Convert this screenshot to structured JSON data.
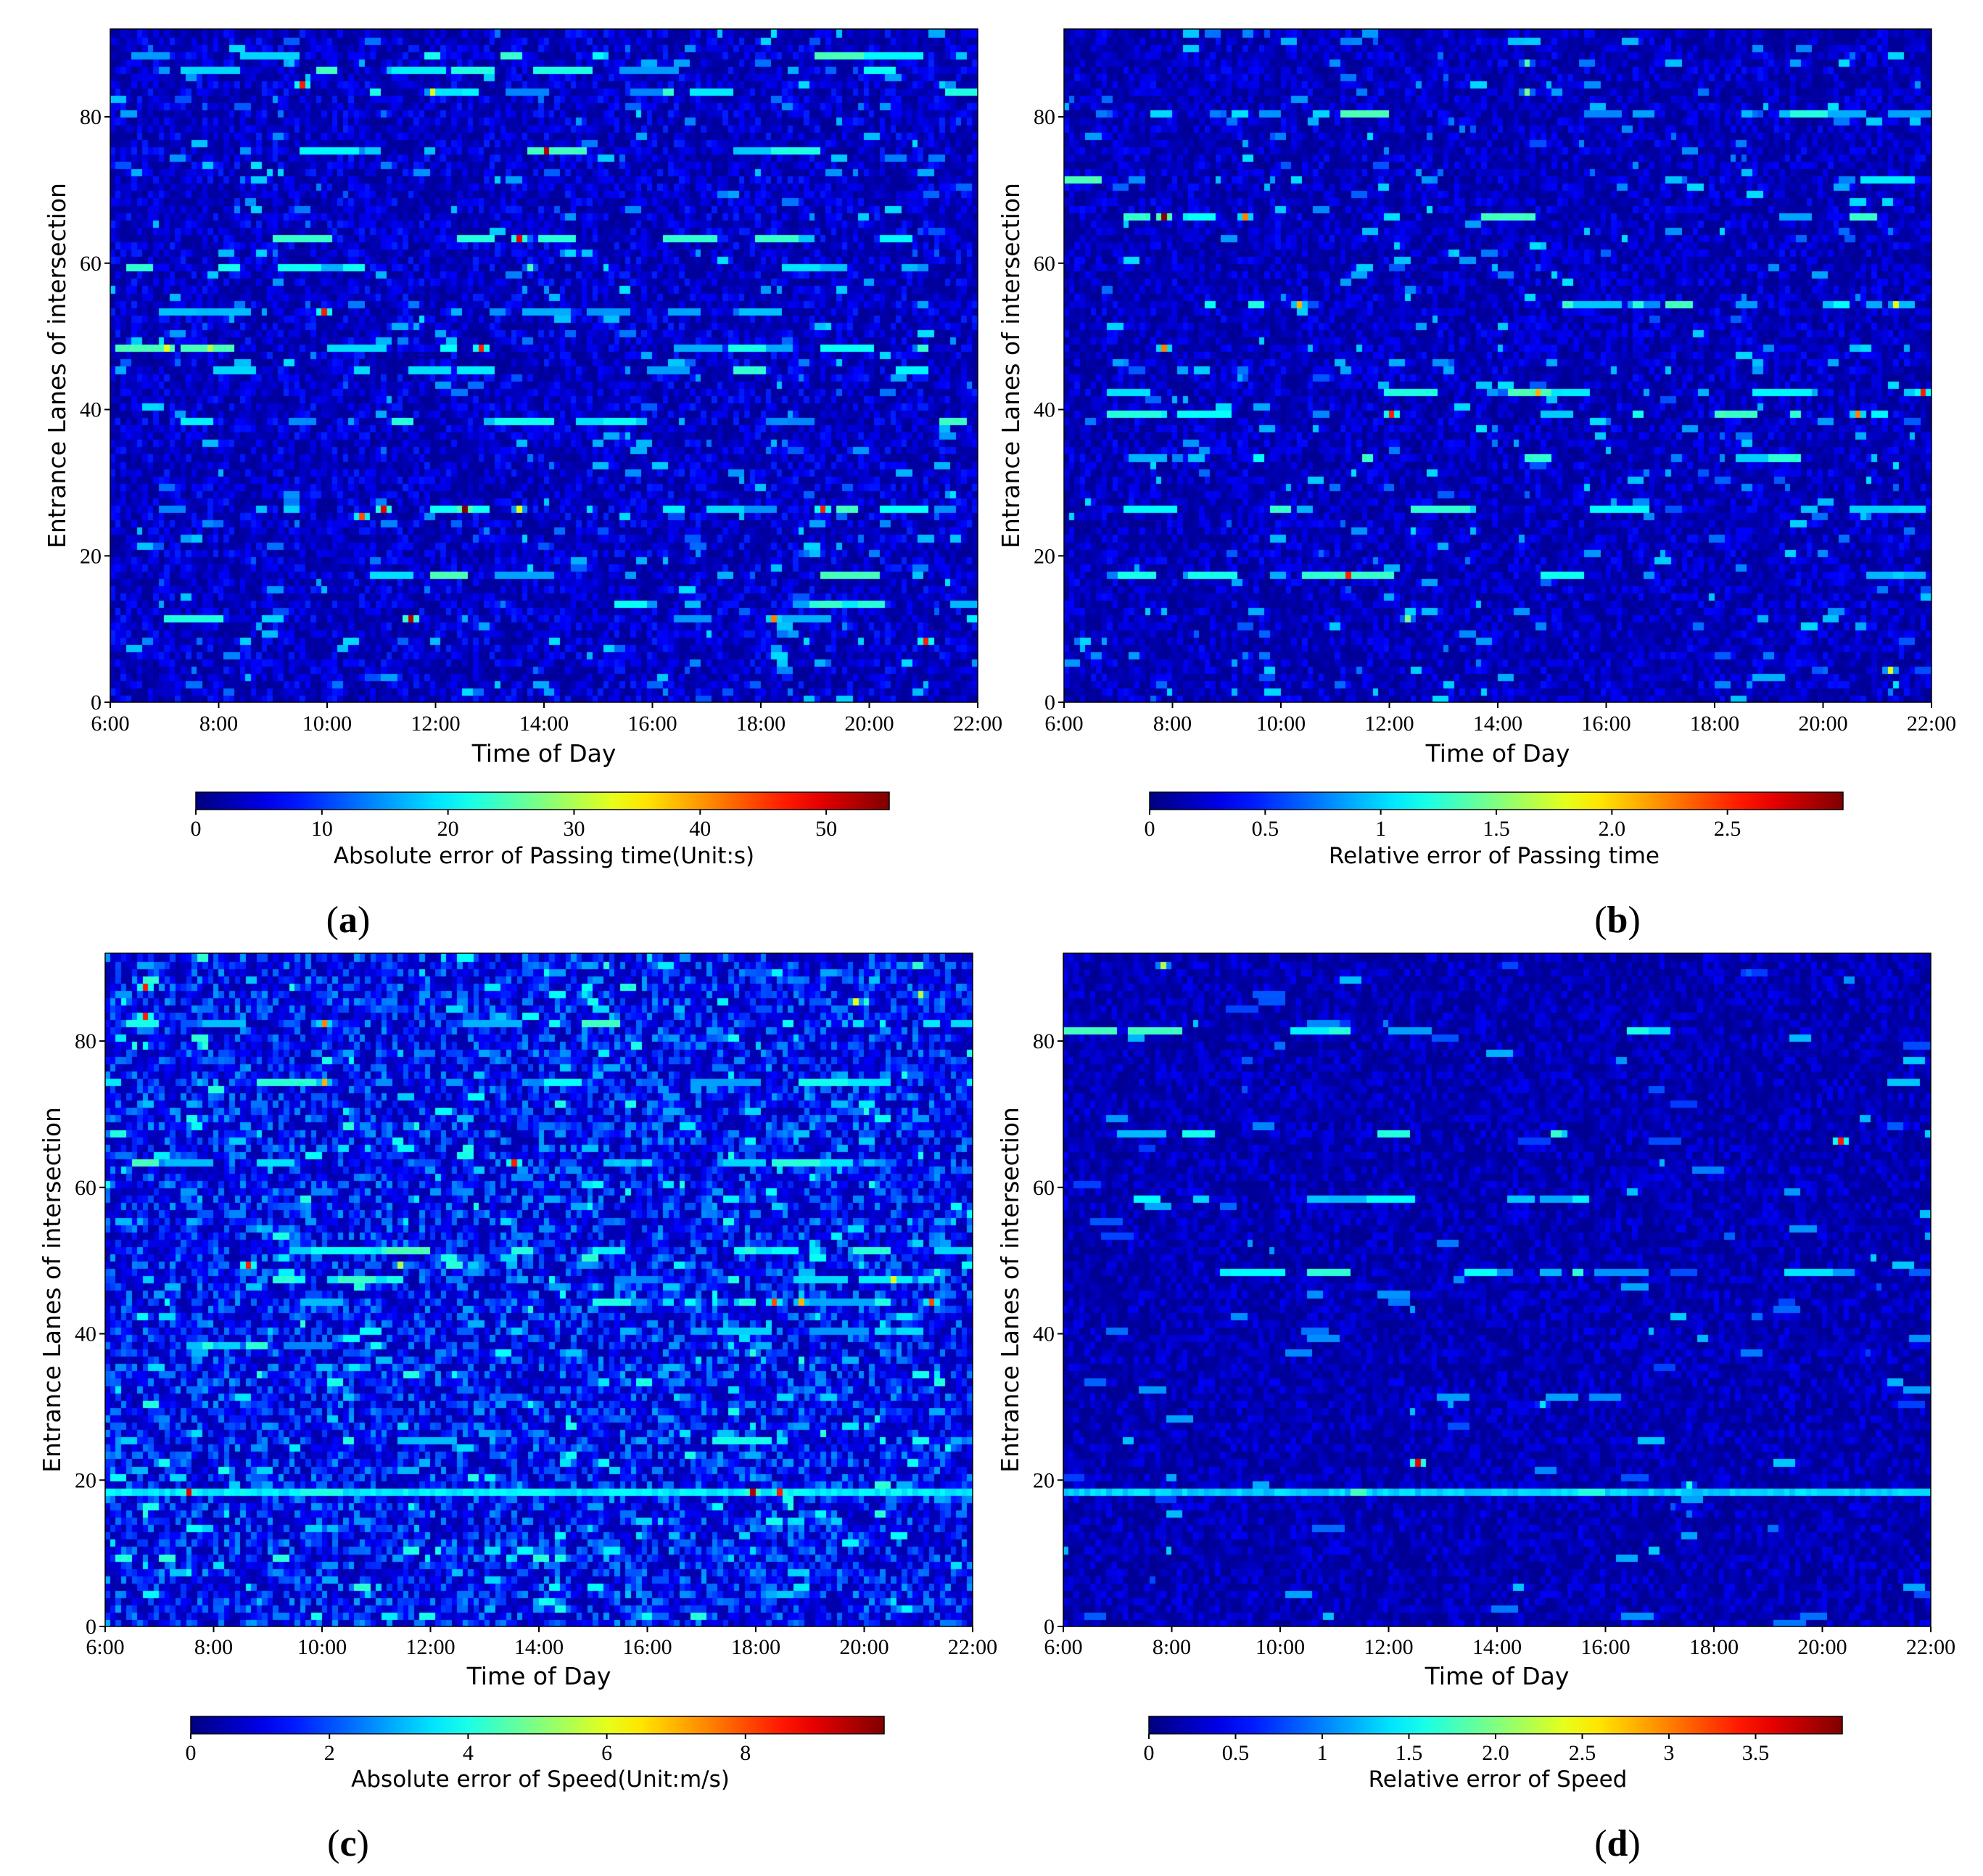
{
  "chart_data": [
    {
      "id": "a",
      "panel_label_open": "(",
      "panel_label_letter": "a",
      "panel_label_close": ")",
      "type": "heatmap",
      "xlabel": "Time of Day",
      "ylabel": "Entrance Lanes of intersection",
      "x_ticks": [
        "6:00",
        "8:00",
        "10:00",
        "12:00",
        "14:00",
        "16:00",
        "18:00",
        "20:00",
        "22:00"
      ],
      "y_ticks": [
        0,
        20,
        40,
        60,
        80
      ],
      "x_range_hours": [
        6,
        22
      ],
      "y_range": [
        0,
        92
      ],
      "grid_cols": 160,
      "grid_rows": 92,
      "colorbar": {
        "label": "Absolute error of Passing time(Unit:s)",
        "min": 0,
        "max": 55,
        "ticks": [
          "0",
          "10",
          "20",
          "30",
          "40",
          "50"
        ],
        "tick_values": [
          0,
          10,
          20,
          30,
          40,
          50
        ]
      },
      "background_level": 0.08,
      "hot_spots": [
        {
          "t": 9.5,
          "lane": 84,
          "v": 0.85
        },
        {
          "t": 14.0,
          "lane": 75,
          "v": 0.95
        },
        {
          "t": 13.5,
          "lane": 63,
          "v": 0.9
        },
        {
          "t": 9.9,
          "lane": 53,
          "v": 0.85
        },
        {
          "t": 7.0,
          "lane": 48,
          "v": 0.6
        },
        {
          "t": 7.8,
          "lane": 48,
          "v": 0.55
        },
        {
          "t": 12.8,
          "lane": 48,
          "v": 0.85
        },
        {
          "t": 10.6,
          "lane": 25,
          "v": 0.8
        },
        {
          "t": 11.0,
          "lane": 26,
          "v": 0.9
        },
        {
          "t": 12.5,
          "lane": 26,
          "v": 1.0
        },
        {
          "t": 13.5,
          "lane": 26,
          "v": 0.6
        },
        {
          "t": 19.2,
          "lane": 26,
          "v": 0.85
        },
        {
          "t": 11.5,
          "lane": 11,
          "v": 0.95
        },
        {
          "t": 18.3,
          "lane": 11,
          "v": 0.75
        },
        {
          "t": 21.1,
          "lane": 8,
          "v": 0.85
        },
        {
          "t": 13.7,
          "lane": 59,
          "v": 0.45
        },
        {
          "t": 11.9,
          "lane": 83,
          "v": 0.6
        }
      ],
      "streak_lanes": [
        26,
        63,
        59,
        86,
        88,
        83,
        75,
        13,
        11,
        17,
        53,
        48,
        38,
        45
      ]
    },
    {
      "id": "b",
      "panel_label_open": "(",
      "panel_label_letter": "b",
      "panel_label_close": ")",
      "type": "heatmap",
      "xlabel": "Time of Day",
      "ylabel": "Entrance Lanes of intersection",
      "x_ticks": [
        "6:00",
        "8:00",
        "10:00",
        "12:00",
        "14:00",
        "16:00",
        "18:00",
        "20:00",
        "22:00"
      ],
      "y_ticks": [
        0,
        20,
        40,
        60,
        80
      ],
      "x_range_hours": [
        6,
        22
      ],
      "y_range": [
        0,
        92
      ],
      "grid_cols": 160,
      "grid_rows": 92,
      "colorbar": {
        "label": "Relative error of Passing time",
        "min": 0,
        "max": 3.0,
        "ticks": [
          "0",
          "0.5",
          "1",
          "1.5",
          "2.0",
          "2.5"
        ],
        "tick_values": [
          0,
          0.5,
          1,
          1.5,
          2.0,
          2.5
        ]
      },
      "background_level": 0.07,
      "hot_spots": [
        {
          "t": 7.8,
          "lane": 66,
          "v": 1.0
        },
        {
          "t": 9.3,
          "lane": 66,
          "v": 0.75
        },
        {
          "t": 10.3,
          "lane": 54,
          "v": 0.7
        },
        {
          "t": 7.8,
          "lane": 48,
          "v": 0.75
        },
        {
          "t": 12.0,
          "lane": 39,
          "v": 0.85
        },
        {
          "t": 14.8,
          "lane": 42,
          "v": 0.7
        },
        {
          "t": 11.2,
          "lane": 17,
          "v": 0.85
        },
        {
          "t": 12.3,
          "lane": 11,
          "v": 0.5
        },
        {
          "t": 20.7,
          "lane": 39,
          "v": 0.75
        },
        {
          "t": 21.9,
          "lane": 42,
          "v": 0.85
        },
        {
          "t": 21.4,
          "lane": 54,
          "v": 0.6
        },
        {
          "t": 21.3,
          "lane": 4,
          "v": 0.6
        },
        {
          "t": 18.2,
          "lane": 39,
          "v": 0.45
        },
        {
          "t": 14.6,
          "lane": 87,
          "v": 0.45
        },
        {
          "t": 14.6,
          "lane": 83,
          "v": 0.5
        }
      ],
      "streak_lanes": [
        54,
        42,
        39,
        66,
        80,
        26,
        17,
        33,
        71
      ]
    },
    {
      "id": "c",
      "panel_label_open": "(",
      "panel_label_letter": "c",
      "panel_label_close": ")",
      "type": "heatmap",
      "xlabel": "Time of Day",
      "ylabel": "Entrance Lanes of intersection",
      "x_ticks": [
        "6:00",
        "8:00",
        "10:00",
        "12:00",
        "14:00",
        "16:00",
        "18:00",
        "20:00",
        "22:00"
      ],
      "y_ticks": [
        0,
        20,
        40,
        60,
        80
      ],
      "x_range_hours": [
        6,
        22
      ],
      "y_range": [
        0,
        92
      ],
      "grid_cols": 160,
      "grid_rows": 92,
      "colorbar": {
        "label": "Absolute error of Speed(Unit:m/s)",
        "min": 0,
        "max": 10,
        "ticks": [
          "0",
          "2",
          "4",
          "6",
          "8"
        ],
        "tick_values": [
          0,
          2,
          4,
          6,
          8
        ]
      },
      "background_level": 0.14,
      "hot_spots": [
        {
          "t": 6.7,
          "lane": 87,
          "v": 0.85
        },
        {
          "t": 6.7,
          "lane": 83,
          "v": 0.85
        },
        {
          "t": 10.0,
          "lane": 82,
          "v": 0.75
        },
        {
          "t": 10.0,
          "lane": 74,
          "v": 0.7
        },
        {
          "t": 13.5,
          "lane": 63,
          "v": 0.85
        },
        {
          "t": 8.6,
          "lane": 49,
          "v": 0.85
        },
        {
          "t": 11.4,
          "lane": 49,
          "v": 0.55
        },
        {
          "t": 7.5,
          "lane": 18,
          "v": 0.9
        },
        {
          "t": 18.0,
          "lane": 18,
          "v": 0.95
        },
        {
          "t": 18.5,
          "lane": 18,
          "v": 0.85
        },
        {
          "t": 18.4,
          "lane": 44,
          "v": 0.8
        },
        {
          "t": 18.9,
          "lane": 44,
          "v": 0.7
        },
        {
          "t": 21.3,
          "lane": 44,
          "v": 0.8
        },
        {
          "t": 20.6,
          "lane": 47,
          "v": 0.6
        },
        {
          "t": 21.1,
          "lane": 86,
          "v": 0.55
        },
        {
          "t": 19.9,
          "lane": 85,
          "v": 0.6
        }
      ],
      "streak_lanes": [
        18,
        63,
        74,
        44,
        51,
        25,
        40,
        47,
        82,
        38
      ],
      "strong_lane": 18
    },
    {
      "id": "d",
      "panel_label_open": "(",
      "panel_label_letter": "d",
      "panel_label_close": ")",
      "type": "heatmap",
      "xlabel": "Time of Day",
      "ylabel": "Entrance Lanes of intersection",
      "x_ticks": [
        "6:00",
        "8:00",
        "10:00",
        "12:00",
        "14:00",
        "16:00",
        "18:00",
        "20:00",
        "22:00"
      ],
      "y_ticks": [
        0,
        20,
        40,
        60,
        80
      ],
      "x_range_hours": [
        6,
        22
      ],
      "y_range": [
        0,
        92
      ],
      "grid_cols": 160,
      "grid_rows": 92,
      "colorbar": {
        "label": "Relative error of Speed",
        "min": 0,
        "max": 4.0,
        "ticks": [
          "0",
          "0.5",
          "1",
          "1.5",
          "2.0",
          "2.5",
          "3",
          "3.5"
        ],
        "tick_values": [
          0,
          0.5,
          1,
          1.5,
          2.0,
          2.5,
          3,
          3.5
        ]
      },
      "background_level": 0.06,
      "hot_spots": [
        {
          "t": 7.8,
          "lane": 90,
          "v": 0.55
        },
        {
          "t": 12.5,
          "lane": 22,
          "v": 0.9
        },
        {
          "t": 20.4,
          "lane": 66,
          "v": 0.85
        },
        {
          "t": 17.6,
          "lane": 19,
          "v": 0.4
        },
        {
          "t": 14.9,
          "lane": 30,
          "v": 0.35
        }
      ],
      "streak_lanes": [
        18,
        67,
        58,
        81,
        48
      ],
      "strong_lane": 18
    }
  ]
}
